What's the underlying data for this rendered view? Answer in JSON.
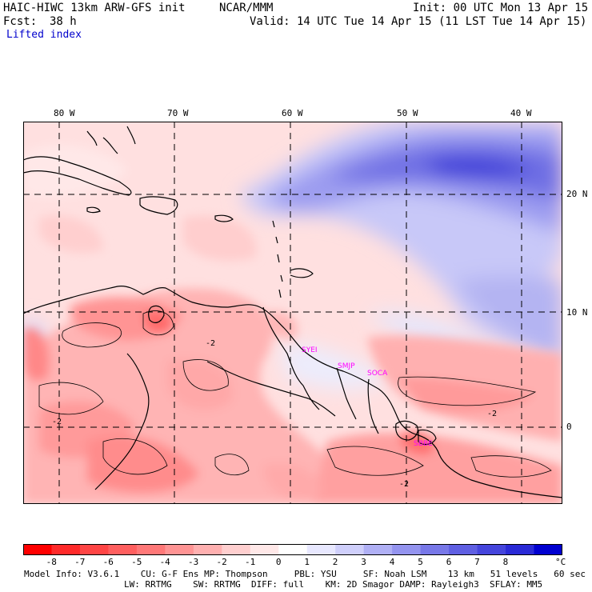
{
  "header": {
    "model": "HAIC-HIWC 13km ARW-GFS init",
    "org": "NCAR/MMM",
    "init": "Init: 00 UTC Mon 13 Apr 15",
    "fcst_label": "Fcst:",
    "fcst_value": "38 h",
    "valid": "Valid: 14 UTC Tue 14 Apr 15 (11 LST Tue 14 Apr 15)",
    "field": "Lifted index"
  },
  "map": {
    "lon_labels": [
      "80 W",
      "70 W",
      "60 W",
      "50 W",
      "40 W"
    ],
    "lat_labels": [
      "20 N",
      "10 N",
      "0"
    ],
    "stations": [
      "SYEI",
      "SMJP",
      "SOCA",
      "SBBE"
    ],
    "contour_labels": [
      "-2",
      "-2",
      "-2",
      "-2"
    ]
  },
  "colorbar": {
    "labels": [
      "-8",
      "-7",
      "-6",
      "-5",
      "-4",
      "-3",
      "-2",
      "-1",
      "0",
      "1",
      "2",
      "3",
      "4",
      "5",
      "6",
      "7",
      "8"
    ],
    "unit": "°C",
    "colors": [
      "#ff0000",
      "#ff2a2a",
      "#ff4545",
      "#ff5f5f",
      "#ff7878",
      "#ff9494",
      "#ffb0b0",
      "#ffcfcf",
      "#ffe8e8",
      "#ffffff",
      "#e8e8ff",
      "#cfcffb",
      "#b0b0f5",
      "#9494ef",
      "#7878e8",
      "#5f5fe2",
      "#4545dc",
      "#2a2ad6",
      "#0000d0"
    ]
  },
  "footer": {
    "line1": "Model Info: V3.6.1    CU: G-F Ens MP: Thompson     PBL: YSU     SF: Noah LSM    13 km   51 levels   60 sec",
    "line2": "LW: RRTMG    SW: RRTMG  DIFF: full    KM: 2D Smagor DAMP: Rayleigh3  SFLAY: MM5"
  }
}
